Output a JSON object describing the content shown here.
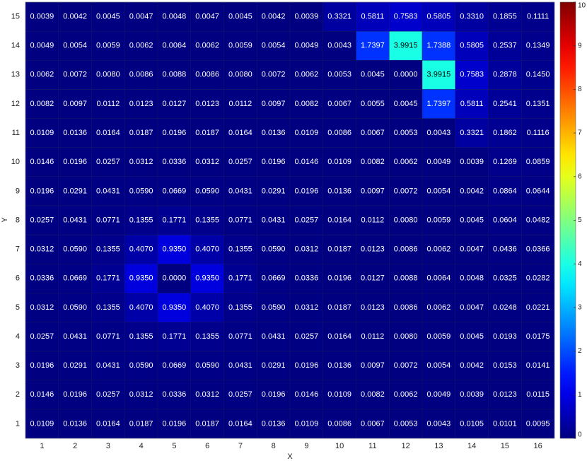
{
  "chart_data": {
    "type": "heatmap",
    "x_label": "X",
    "y_label": "Y",
    "x": [
      1,
      2,
      3,
      4,
      5,
      6,
      7,
      8,
      9,
      10,
      11,
      12,
      13,
      14,
      15,
      16
    ],
    "y": [
      1,
      2,
      3,
      4,
      5,
      6,
      7,
      8,
      9,
      10,
      11,
      12,
      13,
      14,
      15
    ],
    "colormap": "jet",
    "zlim": [
      0,
      10
    ],
    "zticks": [
      0,
      1,
      2,
      3,
      4,
      5,
      6,
      7,
      8,
      9,
      10
    ],
    "values": [
      [
        0.0109,
        0.0136,
        0.0164,
        0.0187,
        0.0196,
        0.0187,
        0.0164,
        0.0136,
        0.0109,
        0.0086,
        0.0067,
        0.0053,
        0.0043,
        0.0105,
        0.0101,
        0.0095
      ],
      [
        0.0146,
        0.0196,
        0.0257,
        0.0312,
        0.0336,
        0.0312,
        0.0257,
        0.0196,
        0.0146,
        0.0109,
        0.0082,
        0.0062,
        0.0049,
        0.0039,
        0.0123,
        0.0115
      ],
      [
        0.0196,
        0.0291,
        0.0431,
        0.059,
        0.0669,
        0.059,
        0.0431,
        0.0291,
        0.0196,
        0.0136,
        0.0097,
        0.0072,
        0.0054,
        0.0042,
        0.0153,
        0.0141
      ],
      [
        0.0257,
        0.0431,
        0.0771,
        0.1355,
        0.1771,
        0.1355,
        0.0771,
        0.0431,
        0.0257,
        0.0164,
        0.0112,
        0.008,
        0.0059,
        0.0045,
        0.0193,
        0.0175
      ],
      [
        0.0312,
        0.059,
        0.1355,
        0.407,
        0.935,
        0.407,
        0.1355,
        0.059,
        0.0312,
        0.0187,
        0.0123,
        0.0086,
        0.0062,
        0.0047,
        0.0248,
        0.0221
      ],
      [
        0.0336,
        0.0669,
        0.1771,
        0.935,
        0.0,
        0.935,
        0.1771,
        0.0669,
        0.0336,
        0.0196,
        0.0127,
        0.0088,
        0.0064,
        0.0048,
        0.0325,
        0.0282
      ],
      [
        0.0312,
        0.059,
        0.1355,
        0.407,
        0.935,
        0.407,
        0.1355,
        0.059,
        0.0312,
        0.0187,
        0.0123,
        0.0086,
        0.0062,
        0.0047,
        0.0436,
        0.0366
      ],
      [
        0.0257,
        0.0431,
        0.0771,
        0.1355,
        0.1771,
        0.1355,
        0.0771,
        0.0431,
        0.0257,
        0.0164,
        0.0112,
        0.008,
        0.0059,
        0.0045,
        0.0604,
        0.0482
      ],
      [
        0.0196,
        0.0291,
        0.0431,
        0.059,
        0.0669,
        0.059,
        0.0431,
        0.0291,
        0.0196,
        0.0136,
        0.0097,
        0.0072,
        0.0054,
        0.0042,
        0.0864,
        0.0644
      ],
      [
        0.0146,
        0.0196,
        0.0257,
        0.0312,
        0.0336,
        0.0312,
        0.0257,
        0.0196,
        0.0146,
        0.0109,
        0.0082,
        0.0062,
        0.0049,
        0.0039,
        0.1269,
        0.0859
      ],
      [
        0.0109,
        0.0136,
        0.0164,
        0.0187,
        0.0196,
        0.0187,
        0.0164,
        0.0136,
        0.0109,
        0.0086,
        0.0067,
        0.0053,
        0.0043,
        0.3321,
        0.1862,
        0.1116
      ],
      [
        0.0082,
        0.0097,
        0.0112,
        0.0123,
        0.0127,
        0.0123,
        0.0112,
        0.0097,
        0.0082,
        0.0067,
        0.0055,
        0.0045,
        1.7397,
        0.5811,
        0.2541,
        0.1351
      ],
      [
        0.0062,
        0.0072,
        0.008,
        0.0086,
        0.0088,
        0.0086,
        0.008,
        0.0072,
        0.0062,
        0.0053,
        0.0045,
        0.0,
        3.9915,
        0.7583,
        0.2878,
        0.145
      ],
      [
        0.0049,
        0.0054,
        0.0059,
        0.0062,
        0.0064,
        0.0062,
        0.0059,
        0.0054,
        0.0049,
        0.0043,
        1.7397,
        3.9915,
        1.7388,
        0.5805,
        0.2537,
        0.1349
      ],
      [
        0.0039,
        0.0042,
        0.0045,
        0.0047,
        0.0048,
        0.0047,
        0.0045,
        0.0042,
        0.0039,
        0.3321,
        0.5811,
        0.7583,
        0.5805,
        0.331,
        0.1855,
        0.1111
      ]
    ],
    "value_labels": [
      [
        "0.0109",
        "0.0136",
        "0.0164",
        "0.0187",
        "0.0196",
        "0.0187",
        "0.0164",
        "0.0136",
        "0.0109",
        "0.0086",
        "0.0067",
        "0.0053",
        "0.0043",
        "0.0105",
        "0.0101",
        "0.0095"
      ],
      [
        "0.0146",
        "0.0196",
        "0.0257",
        "0.0312",
        "0.0336",
        "0.0312",
        "0.0257",
        "0.0196",
        "0.0146",
        "0.0109",
        "0.0082",
        "0.0062",
        "0.0049",
        "0.0039",
        "0.0123",
        "0.0115"
      ],
      [
        "0.0196",
        "0.0291",
        "0.0431",
        "0.0590",
        "0.0669",
        "0.0590",
        "0.0431",
        "0.0291",
        "0.0196",
        "0.0136",
        "0.0097",
        "0.0072",
        "0.0054",
        "0.0042",
        "0.0153",
        "0.0141"
      ],
      [
        "0.0257",
        "0.0431",
        "0.0771",
        "0.1355",
        "0.1771",
        "0.1355",
        "0.0771",
        "0.0431",
        "0.0257",
        "0.0164",
        "0.0112",
        "0.0080",
        "0.0059",
        "0.0045",
        "0.0193",
        "0.0175"
      ],
      [
        "0.0312",
        "0.0590",
        "0.1355",
        "0.4070",
        "0.9350",
        "0.4070",
        "0.1355",
        "0.0590",
        "0.0312",
        "0.0187",
        "0.0123",
        "0.0086",
        "0.0062",
        "0.0047",
        "0.0248",
        "0.0221"
      ],
      [
        "0.0336",
        "0.0669",
        "0.1771",
        "0.9350",
        "0.0000",
        "0.9350",
        "0.1771",
        "0.0669",
        "0.0336",
        "0.0196",
        "0.0127",
        "0.0088",
        "0.0064",
        "0.0048",
        "0.0325",
        "0.0282"
      ],
      [
        "0.0312",
        "0.0590",
        "0.1355",
        "0.4070",
        "0.9350",
        "0.4070",
        "0.1355",
        "0.0590",
        "0.0312",
        "0.0187",
        "0.0123",
        "0.0086",
        "0.0062",
        "0.0047",
        "0.0436",
        "0.0366"
      ],
      [
        "0.0257",
        "0.0431",
        "0.0771",
        "0.1355",
        "0.1771",
        "0.1355",
        "0.0771",
        "0.0431",
        "0.0257",
        "0.0164",
        "0.0112",
        "0.0080",
        "0.0059",
        "0.0045",
        "0.0604",
        "0.0482"
      ],
      [
        "0.0196",
        "0.0291",
        "0.0431",
        "0.0590",
        "0.0669",
        "0.0590",
        "0.0431",
        "0.0291",
        "0.0196",
        "0.0136",
        "0.0097",
        "0.0072",
        "0.0054",
        "0.0042",
        "0.0864",
        "0.0644"
      ],
      [
        "0.0146",
        "0.0196",
        "0.0257",
        "0.0312",
        "0.0336",
        "0.0312",
        "0.0257",
        "0.0196",
        "0.0146",
        "0.0109",
        "0.0082",
        "0.0062",
        "0.0049",
        "0.0039",
        "0.1269",
        "0.0859"
      ],
      [
        "0.0109",
        "0.0136",
        "0.0164",
        "0.0187",
        "0.0196",
        "0.0187",
        "0.0164",
        "0.0136",
        "0.0109",
        "0.0086",
        "0.0067",
        "0.0053",
        "0.0043",
        "0.3321",
        "0.1862",
        "0.1116"
      ],
      [
        "0.0082",
        "0.0097",
        "0.0112",
        "0.0123",
        "0.0127",
        "0.0123",
        "0.0112",
        "0.0097",
        "0.0082",
        "0.0067",
        "0.0055",
        "0.0045",
        "1.7397",
        "0.5811",
        "0.2541",
        "0.1351"
      ],
      [
        "0.0062",
        "0.0072",
        "0.0080",
        "0.0086",
        "0.0088",
        "0.0086",
        "0.0080",
        "0.0072",
        "0.0062",
        "0.0053",
        "0.0045",
        "0.0000",
        "3.9915",
        "0.7583",
        "0.2878",
        "0.1450"
      ],
      [
        "0.0049",
        "0.0054",
        "0.0059",
        "0.0062",
        "0.0064",
        "0.0062",
        "0.0059",
        "0.0054",
        "0.0049",
        "0.0043",
        "1.7397",
        "3.9915",
        "1.7388",
        "0.5805",
        "0.2537",
        "0.1349"
      ],
      [
        "0.0039",
        "0.0042",
        "0.0045",
        "0.0047",
        "0.0048",
        "0.0047",
        "0.0045",
        "0.0042",
        "0.0039",
        "0.3321",
        "0.5811",
        "0.7583",
        "0.5805",
        "0.3310",
        "0.1855",
        "0.1111"
      ]
    ]
  }
}
